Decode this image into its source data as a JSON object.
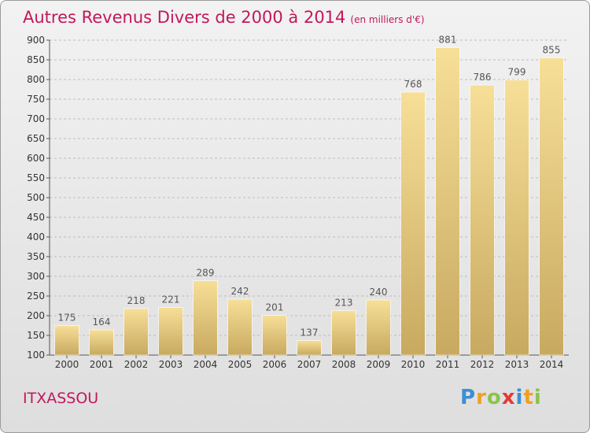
{
  "title": "Autres Revenus Divers de 2000 à 2014",
  "subtitle": "(en milliers d'€)",
  "place": "ITXASSOU",
  "brand": {
    "letters": [
      {
        "ch": "P",
        "color": "#3a8fd6"
      },
      {
        "ch": "r",
        "color": "#f0a020"
      },
      {
        "ch": "o",
        "color": "#8bc34a"
      },
      {
        "ch": "x",
        "color": "#e53935"
      },
      {
        "ch": "i",
        "color": "#3a8fd6"
      },
      {
        "ch": "t",
        "color": "#f0a020"
      },
      {
        "ch": "i",
        "color": "#8bc34a"
      }
    ]
  },
  "chart_data": {
    "type": "bar",
    "title": "Autres Revenus Divers de 2000 à 2014",
    "categories": [
      "2000",
      "2001",
      "2002",
      "2003",
      "2004",
      "2005",
      "2006",
      "2007",
      "2008",
      "2009",
      "2010",
      "2011",
      "2012",
      "2013",
      "2014"
    ],
    "values": [
      175,
      164,
      218,
      221,
      289,
      242,
      201,
      137,
      213,
      240,
      768,
      881,
      786,
      799,
      855
    ],
    "ylim": [
      100,
      900
    ],
    "yticks": [
      100,
      150,
      200,
      250,
      300,
      350,
      400,
      450,
      500,
      550,
      600,
      650,
      700,
      750,
      800,
      850,
      900
    ],
    "grid": true,
    "data_labels": true,
    "colors": {
      "bar_top": "#f7df98",
      "bar_bottom": "#c8a960",
      "label": "#555555",
      "grid": "#bdbdbd"
    }
  }
}
